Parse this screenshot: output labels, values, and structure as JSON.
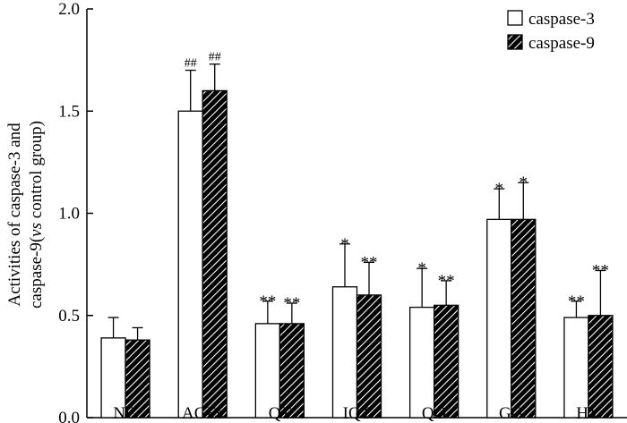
{
  "chart_data": {
    "type": "bar",
    "title": "",
    "xlabel": "",
    "ylabel_line1": "Activities of caspase-3 and",
    "ylabel_line2_prefix": "caspase-9(",
    "ylabel_line2_italic": "vs",
    "ylabel_line2_suffix": " control group)",
    "ylim": [
      0,
      2.0
    ],
    "yticks": [
      "0.0",
      "0.5",
      "1.0",
      "1.5",
      "2.0"
    ],
    "ytick_values": [
      0,
      0.5,
      1.0,
      1.5,
      2.0
    ],
    "categories": [
      "NG",
      "AGEs",
      "QT",
      "IQT",
      "QG",
      "GG",
      "HY"
    ],
    "series": [
      {
        "name": "caspase-3",
        "pattern": "solid",
        "values": [
          0.39,
          1.5,
          0.46,
          0.64,
          0.54,
          0.97,
          0.49
        ],
        "errors": [
          0.1,
          0.2,
          0.11,
          0.21,
          0.19,
          0.15,
          0.08
        ],
        "annotations": [
          "",
          "##",
          "**",
          "*",
          "*",
          "*",
          "**"
        ]
      },
      {
        "name": "caspase-9",
        "pattern": "hatched",
        "values": [
          0.38,
          1.6,
          0.46,
          0.6,
          0.55,
          0.97,
          0.5
        ],
        "errors": [
          0.06,
          0.13,
          0.1,
          0.16,
          0.12,
          0.18,
          0.22
        ],
        "annotations": [
          "",
          "##",
          "**",
          "**",
          "**",
          "*",
          "**"
        ]
      }
    ],
    "legend_position": "top-right"
  }
}
